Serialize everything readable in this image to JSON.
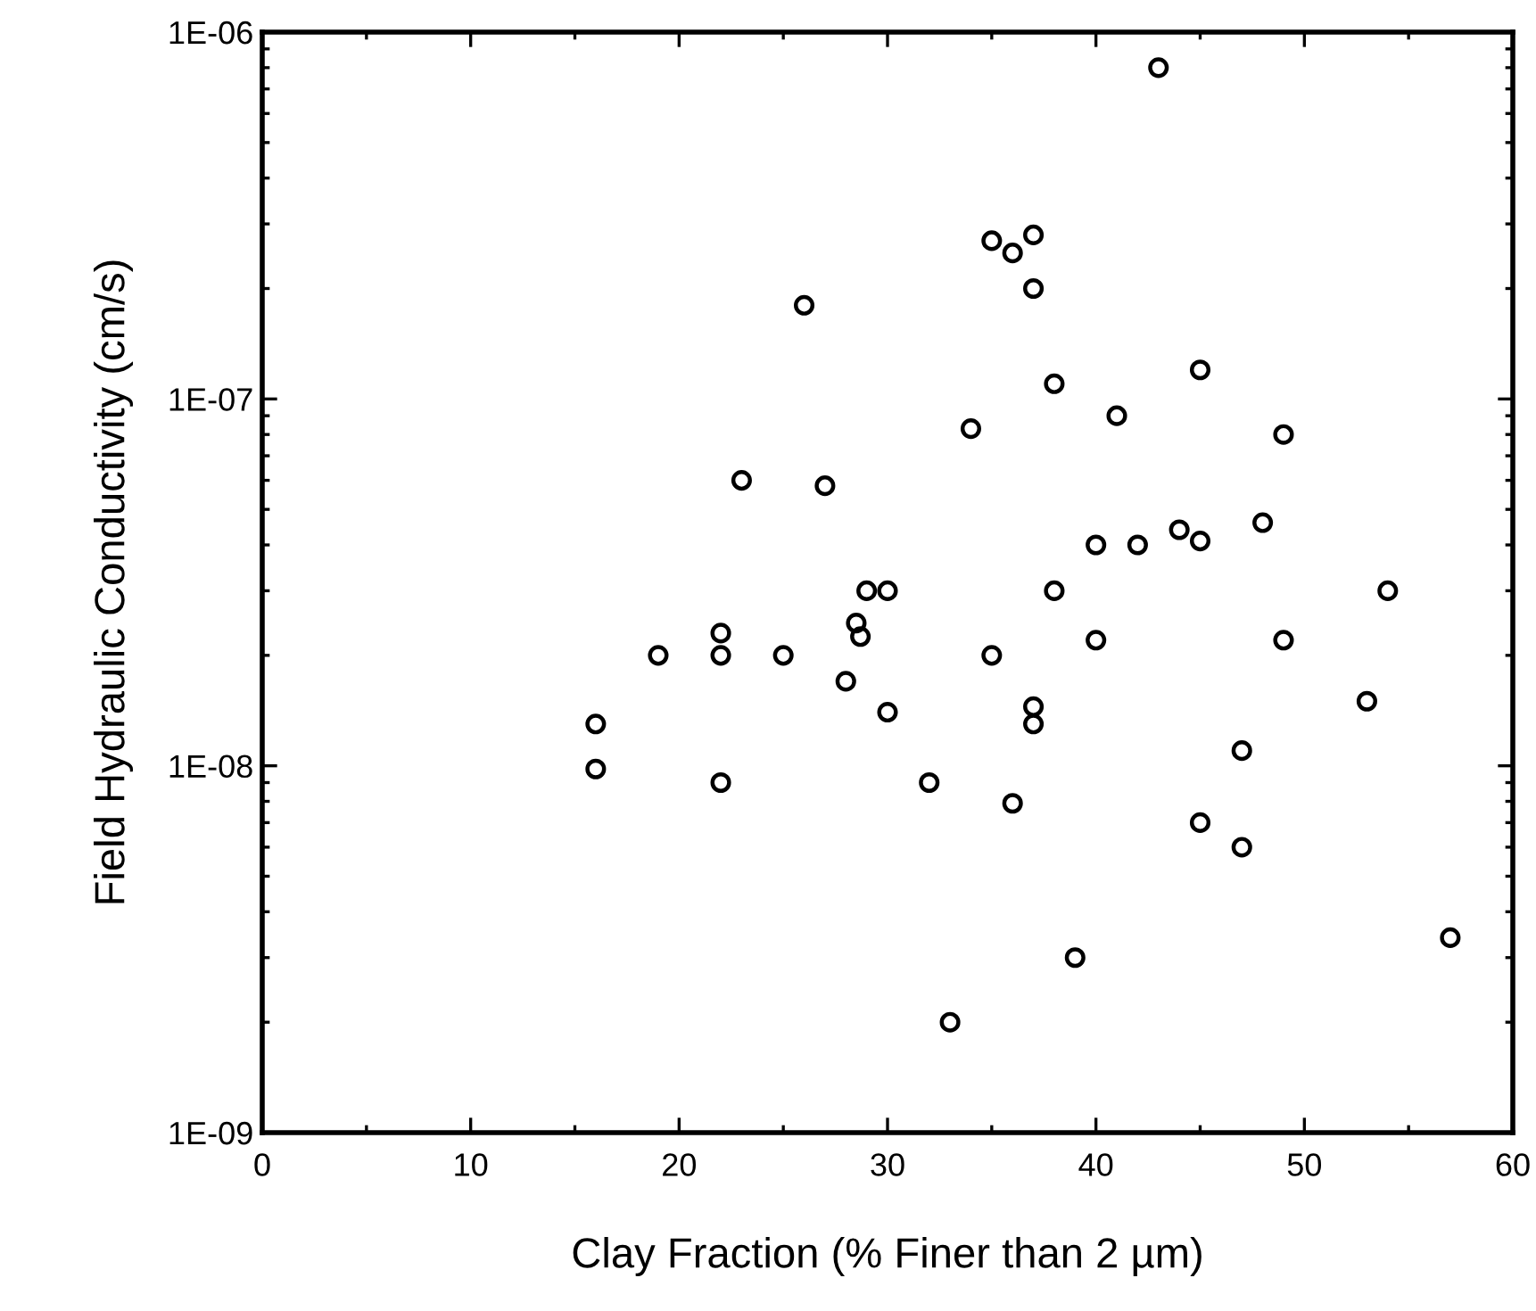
{
  "chart_data": {
    "type": "scatter",
    "xlabel": "Clay Fraction (% Finer than 2 µm)",
    "ylabel": "Field Hydraulic Conductivity (cm/s)",
    "x": [
      43,
      35,
      36,
      37,
      37,
      26,
      38,
      45,
      34,
      41,
      49,
      23,
      27,
      44,
      48,
      40,
      42,
      45,
      29,
      30,
      38,
      54,
      22,
      28.5,
      28.7,
      40,
      49,
      19,
      22,
      25,
      35,
      28,
      53,
      16,
      30,
      37,
      37,
      47,
      16,
      22,
      32,
      36,
      45,
      47,
      57,
      39,
      33
    ],
    "values": [
      8e-07,
      2.7e-07,
      2.5e-07,
      2.8e-07,
      2e-07,
      1.8e-07,
      1.1e-07,
      1.2e-07,
      8.3e-08,
      9e-08,
      8e-08,
      6e-08,
      5.8e-08,
      4.4e-08,
      4.6e-08,
      4e-08,
      4e-08,
      4.1e-08,
      3e-08,
      3e-08,
      3e-08,
      3e-08,
      2.3e-08,
      2.45e-08,
      2.25e-08,
      2.2e-08,
      2.2e-08,
      2e-08,
      2e-08,
      2e-08,
      2e-08,
      1.7e-08,
      1.5e-08,
      1.3e-08,
      1.4e-08,
      1.45e-08,
      1.3e-08,
      1.1e-08,
      9.8e-09,
      9e-09,
      9e-09,
      7.9e-09,
      7e-09,
      6e-09,
      3.4e-09,
      3e-09,
      2e-09
    ],
    "color": "#000000",
    "marker": "circle",
    "log": "y",
    "grid": false,
    "xlim": [
      0,
      60
    ],
    "xticks": [
      0,
      10,
      20,
      30,
      40,
      50,
      60
    ],
    "ylim": [
      1e-09,
      1e-06
    ],
    "yticks": [
      {
        "value": 1e-09,
        "label": "1E-09"
      },
      {
        "value": 1e-08,
        "label": "1E-08"
      },
      {
        "value": 1e-07,
        "label": "1E-07"
      },
      {
        "value": 1e-06,
        "label": "1E-06"
      }
    ]
  }
}
